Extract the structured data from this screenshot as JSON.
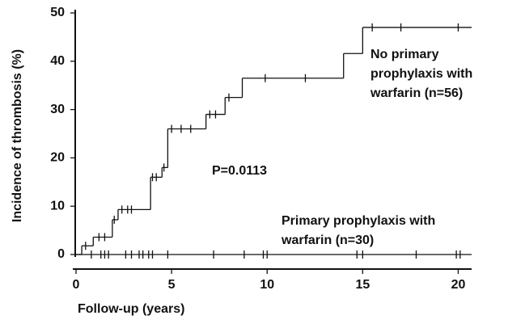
{
  "chart_data": {
    "type": "step",
    "ylabel": "Incidence of thrombosis (%)",
    "xlabel": "Follow-up (years)",
    "annotation": "P=0.0113",
    "xlim": [
      0,
      20.7
    ],
    "ylim": [
      0,
      50
    ],
    "xticks": [
      0,
      5,
      10,
      15,
      20
    ],
    "yticks": [
      0,
      10,
      20,
      30,
      40,
      50
    ],
    "color": "#000000",
    "series": [
      {
        "name": [
          "No primary",
          "prophylaxis with",
          "warfarin (n=56)"
        ],
        "x": [
          0,
          0.3,
          0.9,
          1.9,
          2.2,
          3.9,
          4.5,
          4.8,
          6.8,
          7.8,
          8.7,
          14,
          15,
          20.7
        ],
        "values": [
          0,
          1.8,
          3.6,
          7.2,
          9.3,
          16,
          18,
          26,
          29,
          32.5,
          36.5,
          41.6,
          47,
          47
        ],
        "censored": {
          "x": [
            0.5,
            1.2,
            1.5,
            2.0,
            2.4,
            2.7,
            2.9,
            4.0,
            4.2,
            4.6,
            5.0,
            5.5,
            6.0,
            7.0,
            7.3,
            8.0,
            9.9,
            12,
            15.5,
            17,
            20
          ],
          "values": [
            1.8,
            3.6,
            3.6,
            7.2,
            9.3,
            9.3,
            9.3,
            16,
            16,
            18,
            26,
            26,
            26,
            29,
            29,
            32.5,
            36.5,
            36.5,
            47,
            47,
            47
          ]
        }
      },
      {
        "name": [
          "Primary prophylaxis with",
          "warfarin (n=30)"
        ],
        "x": [
          0,
          20.7
        ],
        "values": [
          0,
          0
        ],
        "censored": {
          "x": [
            0.8,
            1.3,
            1.5,
            1.7,
            2.6,
            2.9,
            3.3,
            3.5,
            3.8,
            4.0,
            4.8,
            7.2,
            8.8,
            9.8,
            10.0,
            14.7,
            15.0,
            17.8,
            19.9,
            20.1
          ],
          "values": [
            0,
            0,
            0,
            0,
            0,
            0,
            0,
            0,
            0,
            0,
            0,
            0,
            0,
            0,
            0,
            0,
            0,
            0,
            0,
            0
          ]
        }
      }
    ]
  }
}
